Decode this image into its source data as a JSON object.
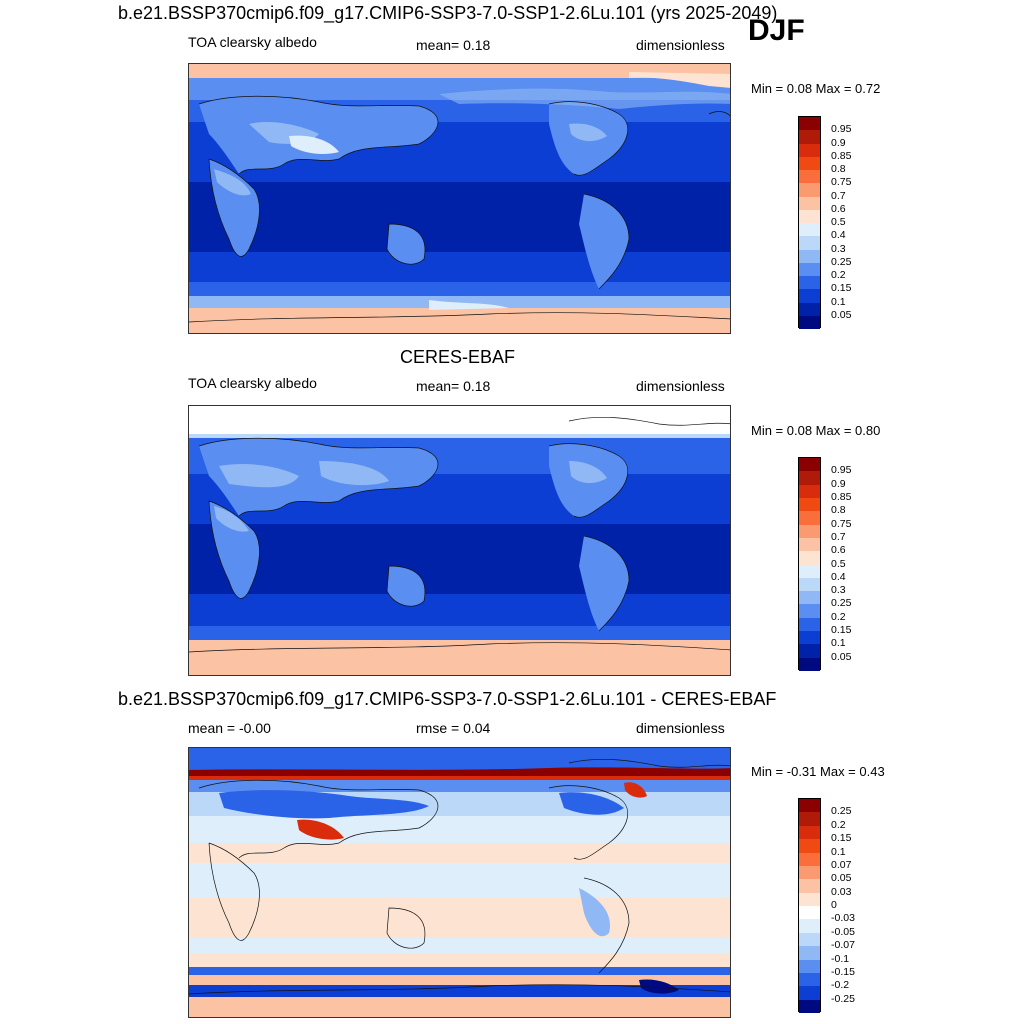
{
  "season": "DJF",
  "panels": [
    {
      "id": "model",
      "title": "b.e21.BSSP370cmip6.f09_g17.CMIP6-SSP3-7.0-SSP1-2.6Lu.101 (yrs 2025-2049)",
      "left_label": "TOA clearsky albedo",
      "center_label": "mean=   0.18",
      "right_label": "dimensionless",
      "minmax": "Min =   0.08 Max =   0.72",
      "stats": {
        "mean": 0.18,
        "min": 0.08,
        "max": 0.72
      }
    },
    {
      "id": "obs",
      "title": "CERES-EBAF",
      "left_label": "TOA clearsky albedo",
      "center_label": "mean=   0.18",
      "right_label": "dimensionless",
      "minmax": "Min =   0.08 Max =   0.80",
      "stats": {
        "mean": 0.18,
        "min": 0.08,
        "max": 0.8
      }
    },
    {
      "id": "diff",
      "title": "b.e21.BSSP370cmip6.f09_g17.CMIP6-SSP3-7.0-SSP1-2.6Lu.101 - CERES-EBAF",
      "left_label": "mean =  -0.00",
      "center_label": "rmse =   0.04",
      "right_label": "dimensionless",
      "minmax": "Min =  -0.31 Max =   0.43",
      "stats": {
        "mean": -0.0,
        "rmse": 0.04,
        "min": -0.31,
        "max": 0.43
      }
    }
  ],
  "colorbar_albedo": {
    "labels": [
      "0.95",
      "0.9",
      "0.85",
      "0.8",
      "0.75",
      "0.7",
      "0.6",
      "0.5",
      "0.4",
      "0.3",
      "0.25",
      "0.2",
      "0.15",
      "0.1",
      "0.05"
    ],
    "colors": [
      "#8b0000",
      "#b01a08",
      "#d82c0c",
      "#f04a12",
      "#fa6e3c",
      "#f99a70",
      "#fbc2a4",
      "#fde4d2",
      "#deeefb",
      "#bcd8f8",
      "#8fb8f4",
      "#5a8ef0",
      "#2a62e8",
      "#0c3ed4",
      "#0022a8",
      "#000a80"
    ]
  },
  "colorbar_diff": {
    "labels": [
      "0.25",
      "0.2",
      "0.15",
      "0.1",
      "0.07",
      "0.05",
      "0.03",
      "0",
      "-0.03",
      "-0.05",
      "-0.07",
      "-0.1",
      "-0.15",
      "-0.2",
      "-0.25"
    ],
    "colors": [
      "#8b0000",
      "#b01a08",
      "#d82c0c",
      "#f04a12",
      "#fa6e3c",
      "#f99a70",
      "#fbc2a4",
      "#fde4d2",
      "#ffffff",
      "#deeefb",
      "#bcd8f8",
      "#8fb8f4",
      "#5a8ef0",
      "#2a62e8",
      "#0c3ed4",
      "#000a80"
    ]
  }
}
